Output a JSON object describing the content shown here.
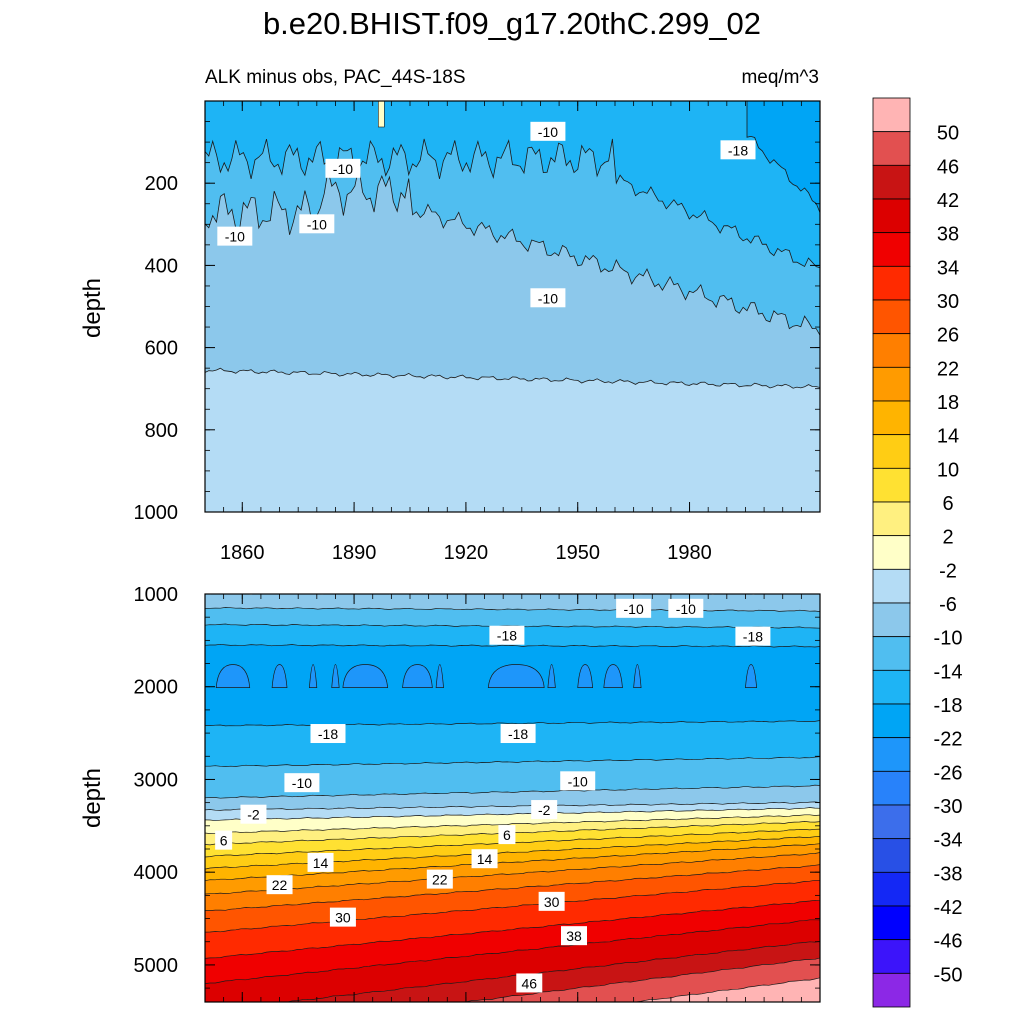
{
  "title": "b.e20.BHIST.f09_g17.20thC.299_02",
  "chart_data": [
    {
      "type": "contour",
      "subtitle_left": "ALK minus obs, PAC_44S-18S",
      "subtitle_right": "meq/m^3",
      "ylabel": "depth",
      "xlim": [
        1850,
        2015
      ],
      "ylim": [
        0,
        1000
      ],
      "y_inverted": true,
      "xticks": [
        "1860",
        "1890",
        "1920",
        "1950",
        "1980"
      ],
      "xtick_values": [
        1860,
        1890,
        1920,
        1950,
        1980
      ],
      "yticks": [
        "200",
        "400",
        "600",
        "800",
        "1000"
      ],
      "ytick_values": [
        200,
        400,
        600,
        800,
        1000
      ],
      "contour_labels": [
        {
          "text": "-10",
          "x": 1858,
          "y": 330
        },
        {
          "text": "-10",
          "x": 1880,
          "y": 300
        },
        {
          "text": "-10",
          "x": 1887,
          "y": 165
        },
        {
          "text": "-10",
          "x": 1942,
          "y": 75
        },
        {
          "text": "-18",
          "x": 1993,
          "y": 120
        },
        {
          "text": "-10",
          "x": 1942,
          "y": 480
        }
      ]
    },
    {
      "type": "contour",
      "ylabel": "depth",
      "xlim": [
        1850,
        2015
      ],
      "ylim": [
        1000,
        5400
      ],
      "y_inverted": true,
      "yticks": [
        "1000",
        "2000",
        "3000",
        "4000",
        "5000"
      ],
      "ytick_values": [
        1000,
        2000,
        3000,
        4000,
        5000
      ],
      "contour_labels": [
        {
          "text": "-10",
          "x": 1965,
          "y": 1160
        },
        {
          "text": "-10",
          "x": 1979,
          "y": 1160
        },
        {
          "text": "-18",
          "x": 1931,
          "y": 1450
        },
        {
          "text": "-18",
          "x": 1997,
          "y": 1460
        },
        {
          "text": "-18",
          "x": 1883,
          "y": 2510
        },
        {
          "text": "-18",
          "x": 1934,
          "y": 2510
        },
        {
          "text": "-10",
          "x": 1876,
          "y": 3040
        },
        {
          "text": "-10",
          "x": 1950,
          "y": 3020
        },
        {
          "text": "-2",
          "x": 1863,
          "y": 3380
        },
        {
          "text": "-2",
          "x": 1941,
          "y": 3330
        },
        {
          "text": "6",
          "x": 1855,
          "y": 3660
        },
        {
          "text": "6",
          "x": 1931,
          "y": 3600
        },
        {
          "text": "14",
          "x": 1881,
          "y": 3900
        },
        {
          "text": "14",
          "x": 1925,
          "y": 3860
        },
        {
          "text": "22",
          "x": 1870,
          "y": 4140
        },
        {
          "text": "22",
          "x": 1913,
          "y": 4080
        },
        {
          "text": "30",
          "x": 1887,
          "y": 4490
        },
        {
          "text": "30",
          "x": 1943,
          "y": 4320
        },
        {
          "text": "38",
          "x": 1949,
          "y": 4690
        },
        {
          "text": "46",
          "x": 1937,
          "y": 5200
        }
      ]
    }
  ],
  "colorbar": {
    "labels": [
      "50",
      "46",
      "42",
      "38",
      "34",
      "30",
      "26",
      "22",
      "18",
      "14",
      "10",
      "6",
      "2",
      "-2",
      "-6",
      "-10",
      "-14",
      "-18",
      "-22",
      "-26",
      "-30",
      "-34",
      "-38",
      "-42",
      "-46",
      "-50"
    ],
    "colors": [
      "#FFB4B4",
      "#E25050",
      "#C81414",
      "#DC0000",
      "#F00000",
      "#FF2A00",
      "#FF5500",
      "#FF7F00",
      "#FF9B00",
      "#FFB400",
      "#FFCD14",
      "#FFE132",
      "#FFF080",
      "#FFFFC8",
      "#B4DCF5",
      "#8CC8EB",
      "#50BEF0",
      "#1EB4F5",
      "#00A5F5",
      "#1E96FA",
      "#2882FA",
      "#3C6EEB",
      "#2850E6",
      "#1428F5",
      "#0000FF",
      "#3C14FA",
      "#8C28E6"
    ]
  },
  "fill_colors": {
    "minus2": "#B4DCF5",
    "minus6": "#8CC8EB",
    "minus10": "#50BEF0",
    "minus14": "#1EB4F5",
    "minus18": "#00A5F5",
    "minus22": "#1E96FA"
  }
}
